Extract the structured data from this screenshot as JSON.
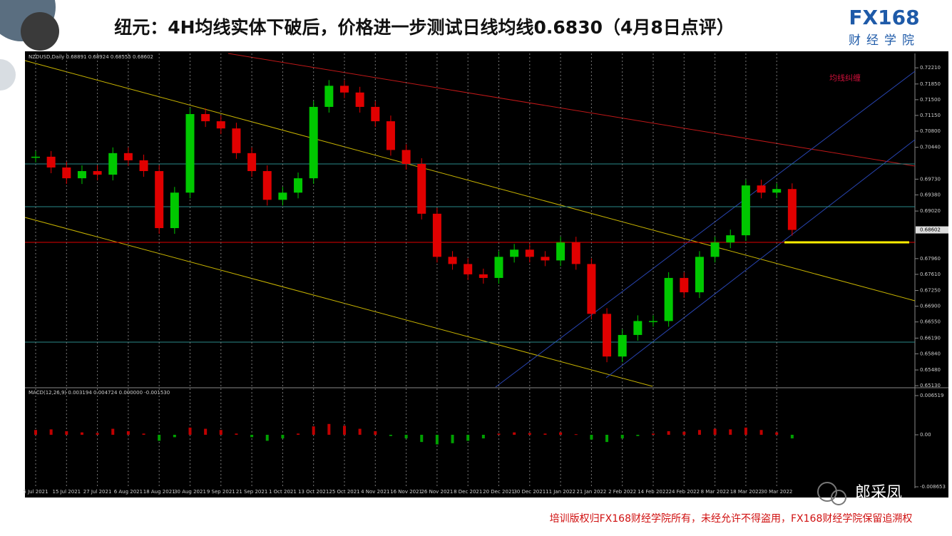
{
  "header": {
    "title": "纽元：4H均线实体下破后，价格进一步测试日线均线0.6830（4月8日点评）",
    "logo_main": "FX168",
    "logo_sub": "财经学院"
  },
  "chart_data": {
    "type": "candlestick",
    "symbol_info": "NZDUSD,Daily  0.68891 0.68924 0.68555 0.68602",
    "annotation": "均线纠缠",
    "categories": [
      "5 Jul 2021",
      null,
      "15 Jul 2021",
      null,
      "27 Jul 2021",
      null,
      "6 Aug 2021",
      null,
      "18 Aug 2021",
      null,
      "30 Aug 2021",
      null,
      "9 Sep 2021",
      null,
      "21 Sep 2021",
      null,
      "1 Oct 2021",
      null,
      "13 Oct 2021",
      null,
      "25 Oct 2021",
      null,
      "4 Nov 2021",
      null,
      "16 Nov 2021",
      null,
      "26 Nov 2021",
      null,
      "8 Dec 2021",
      null,
      "20 Dec 2021",
      null,
      "30 Dec 2021",
      null,
      "11 Jan 2022",
      null,
      "21 Jan 2022",
      null,
      "2 Feb 2022",
      null,
      "14 Feb 2022",
      null,
      "24 Feb 2022",
      null,
      "8 Mar 2022",
      null,
      "18 Mar 2022",
      null,
      "30 Mar 2022",
      null
    ],
    "series": [
      {
        "name": "NZDUSD",
        "up_color": "#00c800",
        "down_color": "#e00000",
        "values": [
          0.7023,
          0.6999,
          0.6975,
          0.6991,
          0.6983,
          0.7031,
          0.7015,
          0.6991,
          0.6864,
          0.6943,
          0.7118,
          0.7102,
          0.7086,
          0.7031,
          0.6991,
          0.6927,
          0.6943,
          0.6975,
          0.7134,
          0.7181,
          0.7166,
          0.7134,
          0.7102,
          0.7038,
          0.7007,
          0.6896,
          0.68,
          0.6784,
          0.6761,
          0.6753,
          0.68,
          0.6816,
          0.68,
          0.6792,
          0.6832,
          0.6784,
          0.6673,
          0.6578,
          0.6626,
          0.6657,
          0.6657,
          0.6753,
          0.6721,
          0.68,
          0.6832,
          0.6848,
          0.6959,
          0.6943,
          0.6951,
          0.686
        ]
      }
    ],
    "ylim": [
      0.651,
      0.7253
    ],
    "yticks": [
      {
        "value": 0.7221,
        "label": "0.72210"
      },
      {
        "value": 0.7185,
        "label": "0.71850"
      },
      {
        "value": 0.715,
        "label": "0.71500"
      },
      {
        "value": 0.7115,
        "label": "0.71150"
      },
      {
        "value": 0.708,
        "label": "0.70800"
      },
      {
        "value": 0.7044,
        "label": "0.70440"
      },
      {
        "value": 0.6973,
        "label": "0.69730"
      },
      {
        "value": 0.6938,
        "label": "0.69380"
      },
      {
        "value": 0.6902,
        "label": "0.69020"
      },
      {
        "value": 0.6796,
        "label": "0.67960"
      },
      {
        "value": 0.6761,
        "label": "0.67610"
      },
      {
        "value": 0.6725,
        "label": "0.67250"
      },
      {
        "value": 0.669,
        "label": "0.66900"
      },
      {
        "value": 0.6655,
        "label": "0.66550"
      },
      {
        "value": 0.6619,
        "label": "0.66190"
      },
      {
        "value": 0.6584,
        "label": "0.65840"
      },
      {
        "value": 0.6548,
        "label": "0.65480"
      },
      {
        "value": 0.6513,
        "label": "0.65130"
      }
    ],
    "price_tag": {
      "value": 0.686,
      "label": "0.68602"
    },
    "macd": {
      "label": "MACD(12,26,9) 0.003194 0.004724 0.000000 -0.001530",
      "color_up": "#c00000",
      "color_down": "#00a000",
      "values": [
        0.0008,
        0.0009,
        0.0006,
        0.0004,
        0.0003,
        0.001,
        0.0006,
        0.0002,
        -0.001,
        -0.0004,
        0.0012,
        0.001,
        0.0008,
        0.0002,
        -0.0004,
        -0.001,
        -0.0006,
        0.0002,
        0.0014,
        0.0018,
        0.0015,
        0.001,
        0.0006,
        -0.0002,
        -0.0006,
        -0.0012,
        -0.0016,
        -0.0014,
        -0.001,
        -0.0006,
        0.0002,
        0.0004,
        0.0003,
        0.0002,
        0.0004,
        0.0001,
        -0.0008,
        -0.0012,
        -0.0006,
        -0.0002,
        0.0002,
        0.0006,
        0.0005,
        0.0008,
        0.001,
        0.0009,
        0.0012,
        0.0008,
        0.0004,
        -0.0006
      ],
      "ylim": [
        -0.008653,
        0.006519
      ],
      "yticks": [
        0.006519,
        {
          "value": 0,
          "label": "0.00"
        },
        -0.008653
      ]
    }
  },
  "footer": {
    "copyright": "培训版权归FX168财经学院所有，未经允许不得盗用，FX168财经学院保留追溯权",
    "watermark": "郎采凤"
  }
}
